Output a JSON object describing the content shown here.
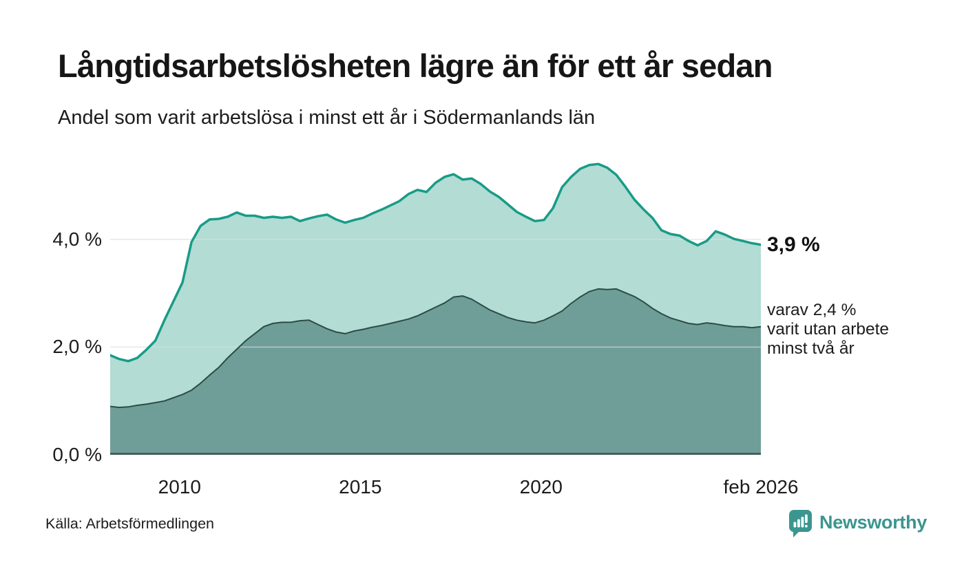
{
  "header": {
    "title": "Långtidsarbetslösheten lägre än för ett år sedan",
    "subtitle": "Andel som varit arbetslösa i minst ett år i Södermanlands län"
  },
  "chart_data": {
    "type": "area",
    "title": "Långtidsarbetslösheten lägre än för ett år sedan",
    "subtitle": "Andel som varit arbetslösa i minst ett år i Södermanlands län",
    "x_unit": "decimal_year_quarterly",
    "x": [
      2008.08,
      2008.33,
      2008.58,
      2008.83,
      2009.08,
      2009.33,
      2009.58,
      2009.83,
      2010.08,
      2010.33,
      2010.58,
      2010.83,
      2011.08,
      2011.33,
      2011.58,
      2011.83,
      2012.08,
      2012.33,
      2012.58,
      2012.83,
      2013.08,
      2013.33,
      2013.58,
      2013.83,
      2014.08,
      2014.33,
      2014.58,
      2014.83,
      2015.08,
      2015.33,
      2015.58,
      2015.83,
      2016.08,
      2016.33,
      2016.58,
      2016.83,
      2017.08,
      2017.33,
      2017.58,
      2017.83,
      2018.08,
      2018.33,
      2018.58,
      2018.83,
      2019.08,
      2019.33,
      2019.58,
      2019.83,
      2020.08,
      2020.33,
      2020.58,
      2020.83,
      2021.08,
      2021.33,
      2021.58,
      2021.83,
      2022.08,
      2022.33,
      2022.58,
      2022.83,
      2023.08,
      2023.33,
      2023.58,
      2023.83,
      2024.08,
      2024.33,
      2024.58,
      2024.83,
      2025.08,
      2025.33,
      2025.58,
      2025.83,
      2026.08
    ],
    "series": [
      {
        "name": "Andel som varit arbetslösa minst ett år",
        "color": "#189b87",
        "fill": "#b2dcd4",
        "values": [
          1.85,
          1.78,
          1.74,
          1.8,
          1.95,
          2.12,
          2.5,
          2.85,
          3.2,
          3.95,
          4.25,
          4.37,
          4.38,
          4.42,
          4.5,
          4.44,
          4.44,
          4.4,
          4.42,
          4.4,
          4.42,
          4.34,
          4.39,
          4.43,
          4.46,
          4.37,
          4.31,
          4.36,
          4.4,
          4.48,
          4.55,
          4.63,
          4.71,
          4.84,
          4.92,
          4.88,
          5.05,
          5.16,
          5.21,
          5.11,
          5.13,
          5.03,
          4.89,
          4.79,
          4.65,
          4.51,
          4.42,
          4.34,
          4.36,
          4.58,
          4.97,
          5.16,
          5.31,
          5.38,
          5.4,
          5.33,
          5.2,
          4.98,
          4.74,
          4.56,
          4.4,
          4.17,
          4.1,
          4.07,
          3.97,
          3.89,
          3.97,
          4.15,
          4.09,
          4.01,
          3.97,
          3.93,
          3.9
        ]
      },
      {
        "name": "varav utan arbete minst två år",
        "color": "#2b4c46",
        "fill": "#6f9e98",
        "values": [
          0.9,
          0.88,
          0.89,
          0.92,
          0.94,
          0.97,
          1.0,
          1.06,
          1.12,
          1.2,
          1.33,
          1.48,
          1.62,
          1.8,
          1.96,
          2.12,
          2.25,
          2.38,
          2.44,
          2.46,
          2.46,
          2.49,
          2.5,
          2.42,
          2.34,
          2.28,
          2.25,
          2.3,
          2.33,
          2.37,
          2.4,
          2.44,
          2.48,
          2.52,
          2.58,
          2.66,
          2.74,
          2.82,
          2.93,
          2.95,
          2.89,
          2.79,
          2.69,
          2.62,
          2.55,
          2.5,
          2.47,
          2.45,
          2.5,
          2.58,
          2.67,
          2.81,
          2.93,
          3.03,
          3.08,
          3.07,
          3.08,
          3.01,
          2.94,
          2.84,
          2.72,
          2.62,
          2.54,
          2.49,
          2.44,
          2.42,
          2.45,
          2.43,
          2.4,
          2.38,
          2.38,
          2.36,
          2.38
        ]
      }
    ],
    "ylim": [
      0,
      5.57
    ],
    "grid": "horizontal",
    "legend": "none",
    "yticks": [
      {
        "label": "0,0 %",
        "value": 0
      },
      {
        "label": "2,0 %",
        "value": 2
      },
      {
        "label": "4,0 %",
        "value": 4
      }
    ],
    "xticks": [
      {
        "label": "2010",
        "value": 2010
      },
      {
        "label": "2015",
        "value": 2015
      },
      {
        "label": "2020",
        "value": 2020
      },
      {
        "label": "feb 2026",
        "value": 2026.08
      }
    ],
    "annotations": [
      {
        "text": "3,9 %",
        "series": 0,
        "style": "bold"
      },
      {
        "text": "varav 2,4 %\nvarit utan arbete\nminst två år",
        "series": 1,
        "style": "regular"
      }
    ]
  },
  "footer": {
    "source": "Källa: Arbetsförmedlingen",
    "brand": "Newsworthy",
    "brand_color": "#3a968e"
  }
}
